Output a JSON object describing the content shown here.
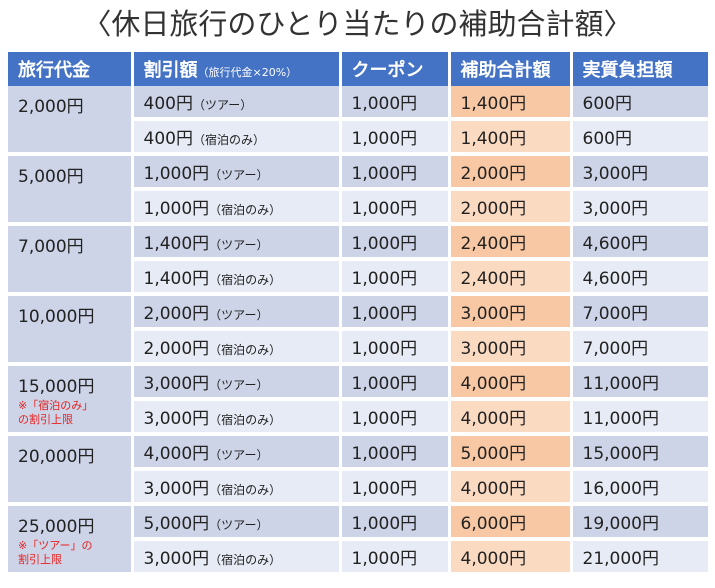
{
  "title": "〈休日旅行のひとり当たりの補助合計額〉",
  "headers": {
    "travel_cost": "旅行代金",
    "discount": "割引額",
    "discount_note": "（旅行代金×20%）",
    "coupon": "クーポン",
    "subsidy_total": "補助合計額",
    "actual_cost": "実質負担額"
  },
  "groups": [
    {
      "travel_cost": "2,000円",
      "note": [],
      "rows": [
        {
          "discount": "400円",
          "type": "（ツアー）",
          "coupon": "1,000円",
          "subsidy": "1,400円",
          "actual": "600円"
        },
        {
          "discount": "400円",
          "type": "（宿泊のみ）",
          "coupon": "1,000円",
          "subsidy": "1,400円",
          "actual": "600円"
        }
      ]
    },
    {
      "travel_cost": "5,000円",
      "note": [],
      "rows": [
        {
          "discount": "1,000円",
          "type": "（ツアー）",
          "coupon": "1,000円",
          "subsidy": "2,000円",
          "actual": "3,000円"
        },
        {
          "discount": "1,000円",
          "type": "（宿泊のみ）",
          "coupon": "1,000円",
          "subsidy": "2,000円",
          "actual": "3,000円"
        }
      ]
    },
    {
      "travel_cost": "7,000円",
      "note": [],
      "rows": [
        {
          "discount": "1,400円",
          "type": "（ツアー）",
          "coupon": "1,000円",
          "subsidy": "2,400円",
          "actual": "4,600円"
        },
        {
          "discount": "1,400円",
          "type": "（宿泊のみ）",
          "coupon": "1,000円",
          "subsidy": "2,400円",
          "actual": "4,600円"
        }
      ]
    },
    {
      "travel_cost": "10,000円",
      "note": [],
      "rows": [
        {
          "discount": "2,000円",
          "type": "（ツアー）",
          "coupon": "1,000円",
          "subsidy": "3,000円",
          "actual": "7,000円"
        },
        {
          "discount": "2,000円",
          "type": "（宿泊のみ）",
          "coupon": "1,000円",
          "subsidy": "3,000円",
          "actual": "7,000円"
        }
      ]
    },
    {
      "travel_cost": "15,000円",
      "note": [
        "※「宿泊のみ」",
        "の割引上限"
      ],
      "rows": [
        {
          "discount": "3,000円",
          "type": "（ツアー）",
          "coupon": "1,000円",
          "subsidy": "4,000円",
          "actual": "11,000円"
        },
        {
          "discount": "3,000円",
          "type": "（宿泊のみ）",
          "coupon": "1,000円",
          "subsidy": "4,000円",
          "actual": "11,000円"
        }
      ]
    },
    {
      "travel_cost": "20,000円",
      "note": [],
      "rows": [
        {
          "discount": "4,000円",
          "type": "（ツアー）",
          "coupon": "1,000円",
          "subsidy": "5,000円",
          "actual": "15,000円"
        },
        {
          "discount": "3,000円",
          "type": "（宿泊のみ）",
          "coupon": "1,000円",
          "subsidy": "4,000円",
          "actual": "16,000円"
        }
      ]
    },
    {
      "travel_cost": "25,000円",
      "note": [
        "※「ツアー」の",
        "割引上限"
      ],
      "rows": [
        {
          "discount": "5,000円",
          "type": "（ツアー）",
          "coupon": "1,000円",
          "subsidy": "6,000円",
          "actual": "19,000円"
        },
        {
          "discount": "3,000円",
          "type": "（宿泊のみ）",
          "coupon": "1,000円",
          "subsidy": "4,000円",
          "actual": "21,000円"
        }
      ]
    }
  ],
  "colors": {
    "header_bg": "#4472c4",
    "row_dark": "#cdd4e8",
    "row_light": "#e7ebf5",
    "highlight_dark": "#f8c7a3",
    "highlight_light": "#fbdac2",
    "note_text": "#e8211f"
  }
}
